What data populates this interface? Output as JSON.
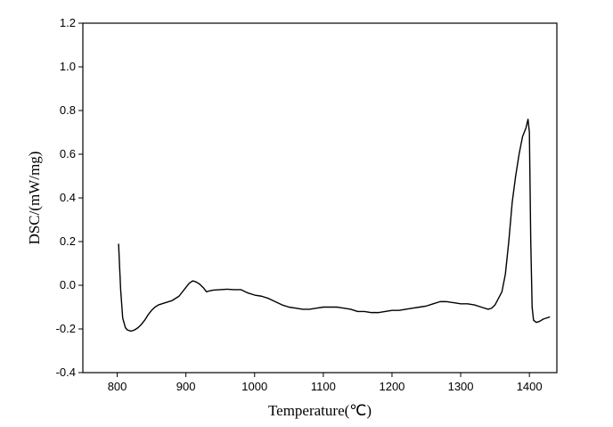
{
  "chart_data": {
    "type": "line",
    "title": "",
    "xlabel": "Temperature(℃)",
    "ylabel": "DSC/(mW/mg)",
    "xlim": [
      750,
      1440
    ],
    "ylim": [
      -0.4,
      1.2
    ],
    "xticks": [
      "800",
      "900",
      "1000",
      "1100",
      "1200",
      "1300",
      "1400"
    ],
    "yticks": [
      "-0.4",
      "-0.2",
      "0.0",
      "0.2",
      "0.4",
      "0.6",
      "0.8",
      "1.0",
      "1.2"
    ],
    "grid": false,
    "line_color": "#000000",
    "series": [
      {
        "x": [
          802,
          805,
          808,
          812,
          815,
          820,
          825,
          830,
          835,
          840,
          845,
          850,
          855,
          860,
          865,
          870,
          880,
          890,
          900,
          905,
          910,
          915,
          920,
          925,
          930,
          935,
          940,
          950,
          960,
          970,
          980,
          990,
          1000,
          1010,
          1020,
          1030,
          1040,
          1050,
          1060,
          1070,
          1080,
          1090,
          1100,
          1110,
          1120,
          1130,
          1140,
          1150,
          1160,
          1170,
          1180,
          1190,
          1200,
          1210,
          1220,
          1230,
          1240,
          1250,
          1260,
          1270,
          1280,
          1290,
          1300,
          1310,
          1320,
          1330,
          1340,
          1345,
          1350,
          1355,
          1360,
          1365,
          1370,
          1375,
          1380,
          1385,
          1390,
          1395,
          1398,
          1400,
          1402,
          1404,
          1406,
          1410,
          1415,
          1420,
          1425,
          1430
        ],
        "y": [
          0.19,
          -0.02,
          -0.15,
          -0.195,
          -0.205,
          -0.21,
          -0.205,
          -0.195,
          -0.18,
          -0.16,
          -0.135,
          -0.115,
          -0.1,
          -0.09,
          -0.085,
          -0.08,
          -0.07,
          -0.05,
          -0.01,
          0.01,
          0.02,
          0.015,
          0.005,
          -0.01,
          -0.03,
          -0.025,
          -0.022,
          -0.02,
          -0.018,
          -0.02,
          -0.02,
          -0.035,
          -0.045,
          -0.05,
          -0.06,
          -0.075,
          -0.09,
          -0.1,
          -0.105,
          -0.11,
          -0.11,
          -0.105,
          -0.1,
          -0.1,
          -0.1,
          -0.105,
          -0.11,
          -0.12,
          -0.12,
          -0.125,
          -0.125,
          -0.12,
          -0.115,
          -0.115,
          -0.11,
          -0.105,
          -0.1,
          -0.095,
          -0.085,
          -0.075,
          -0.075,
          -0.08,
          -0.085,
          -0.085,
          -0.09,
          -0.1,
          -0.11,
          -0.105,
          -0.09,
          -0.06,
          -0.03,
          0.05,
          0.2,
          0.38,
          0.5,
          0.6,
          0.68,
          0.72,
          0.76,
          0.7,
          0.2,
          -0.1,
          -0.16,
          -0.17,
          -0.165,
          -0.155,
          -0.15,
          -0.145
        ]
      }
    ]
  }
}
